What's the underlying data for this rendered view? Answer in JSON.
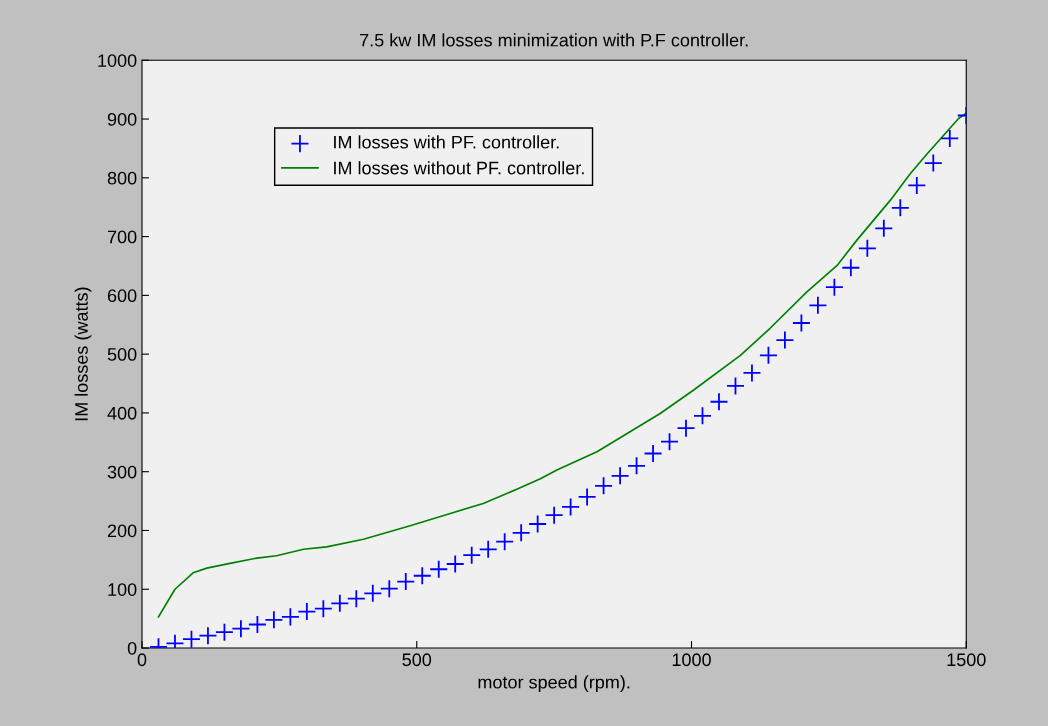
{
  "chart_data": {
    "type": "line",
    "title": "7.5 kw IM losses minimization with P.F controller.",
    "xlabel": "motor speed (rpm).",
    "ylabel": "IM losses (watts)",
    "xlim": [
      0,
      1500
    ],
    "xticks": [
      0,
      500,
      1000,
      1500
    ],
    "ylim": [
      0,
      1000
    ],
    "yticks": [
      0,
      100,
      200,
      300,
      400,
      500,
      600,
      700,
      800,
      900,
      1000
    ],
    "grid": false,
    "legend": "top left",
    "series": [
      {
        "name": "IM losses with PF. controller.",
        "type": "scatter",
        "marker": "cross",
        "color": "#0000ff",
        "x": [
          30,
          60,
          90,
          120,
          150,
          180,
          210,
          240,
          270,
          300,
          330,
          360,
          390,
          420,
          450,
          480,
          510,
          540,
          570,
          600,
          630,
          660,
          690,
          720,
          750,
          780,
          810,
          840,
          870,
          900,
          930,
          960,
          990,
          1020,
          1050,
          1080,
          1110,
          1140,
          1170,
          1200,
          1230,
          1260,
          1290,
          1320,
          1350,
          1380,
          1410,
          1440,
          1470,
          1500
        ],
        "values": [
          2,
          8,
          15,
          21,
          27,
          33,
          40,
          48,
          53,
          62,
          67,
          76,
          84,
          93,
          101,
          113,
          123,
          134,
          143,
          158,
          168,
          181,
          196,
          211,
          226,
          240,
          257,
          276,
          293,
          310,
          331,
          351,
          374,
          395,
          419,
          446,
          468,
          498,
          524,
          553,
          583,
          614,
          647,
          680,
          714,
          749,
          787,
          825,
          867,
          906
        ]
      },
      {
        "name": "IM losses without PF. controller.",
        "marker": "none",
        "line_style": "solid",
        "color": "#008000",
        "x": [
          30,
          60,
          93,
          118,
          160,
          209,
          245,
          294,
          336,
          403,
          488,
          561,
          621,
          682,
          725,
          755,
          828,
          943,
          1004,
          1089,
          1143,
          1210,
          1265,
          1301,
          1362,
          1398,
          1429,
          1486,
          1500
        ],
        "values": [
          53,
          100,
          128,
          136,
          144,
          153,
          157,
          168,
          172,
          185,
          208,
          229,
          246,
          270,
          288,
          303,
          334,
          399,
          439,
          498,
          544,
          606,
          651,
          694,
          762,
          807,
          841,
          901,
          910
        ]
      }
    ]
  }
}
